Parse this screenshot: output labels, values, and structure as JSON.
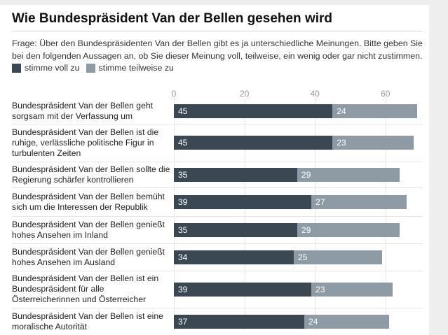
{
  "title": "Wie Bundespräsident Van der Bellen gesehen wird",
  "question_line1": "Frage: Über den Bundespräsidenten Van der Bellen gibt es ja unterschiedliche Meinungen. Bitte geben Sie",
  "question_line2": "bei den folgenden Aussagen an, ob Sie dieser Meinung voll, teilweise, ein wenig oder gar nicht zustimmen.",
  "legend": [
    {
      "label": "stimme voll zu",
      "color": "#3b4753"
    },
    {
      "label": "stimme teilweise zu",
      "color": "#8e9aa4"
    }
  ],
  "chart_data": {
    "type": "bar",
    "orientation": "horizontal",
    "stacked": true,
    "xlim": [
      0,
      70
    ],
    "xticks": [
      0,
      20,
      40,
      60
    ],
    "categories": [
      "Bundespräsident Van der Bellen geht sorgsam mit der Verfassung um",
      "Bundespräsident Van der Bellen ist die ruhige, verlässliche politische Figur in turbulenten Zeiten",
      "Bundespräsident Van der Bellen sollte die Regierung schärfer kontrollieren",
      "Bundespräsident Van der Bellen bemüht sich um die Interessen der Republik",
      "Bundespräsident Van der Bellen genießt hohes Ansehen im Inland",
      "Bundespräsident Van der Bellen genießt hohes Ansehen im Ausland",
      "Bundespräsident Van der Bellen ist ein Bundespräsident für alle Österreicherinnen und Österreicher",
      "Bundespräsident Van der Bellen ist eine moralische Autorität"
    ],
    "series": [
      {
        "name": "stimme voll zu",
        "color": "#3b4753",
        "values": [
          45,
          45,
          35,
          39,
          35,
          34,
          39,
          37
        ]
      },
      {
        "name": "stimme teilweise zu",
        "color": "#8e9aa4",
        "values": [
          24,
          23,
          29,
          27,
          29,
          25,
          23,
          24
        ]
      }
    ]
  }
}
